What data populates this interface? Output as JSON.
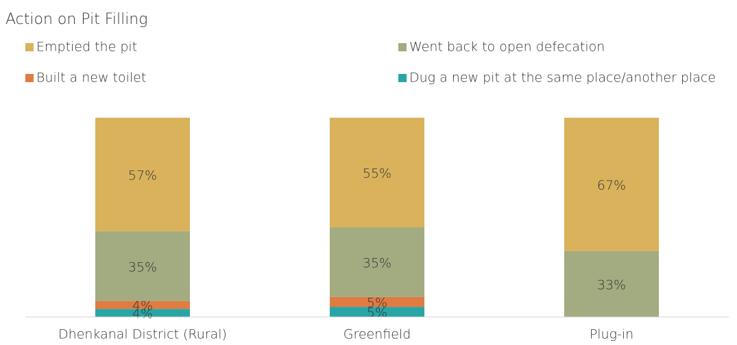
{
  "chart_data": {
    "type": "stacked_bar",
    "title": "Action on Pit Filling",
    "categories": [
      "Dhenkanal District (Rural)",
      "Greenfield",
      "Plug-in"
    ],
    "series": [
      {
        "name": "Emptied the pit",
        "color": "#d9b25b",
        "values": [
          57,
          55,
          67
        ],
        "value_labels": [
          "57%",
          "55%",
          "67%"
        ]
      },
      {
        "name": "Went back to open defecation",
        "color": "#a3ab80",
        "values": [
          35,
          35,
          33
        ],
        "value_labels": [
          "35%",
          "35%",
          "33%"
        ]
      },
      {
        "name": "Built a new toilet",
        "color": "#e07b42",
        "values": [
          4,
          5,
          null
        ],
        "value_labels": [
          "4%",
          "5%",
          null
        ]
      },
      {
        "name": "Dug a new pit at the same place/another place",
        "color": "#28a6a5",
        "values": [
          4,
          5,
          null
        ],
        "value_labels": [
          "4%",
          "5%",
          null
        ]
      }
    ],
    "ylim": [
      0,
      100
    ]
  }
}
